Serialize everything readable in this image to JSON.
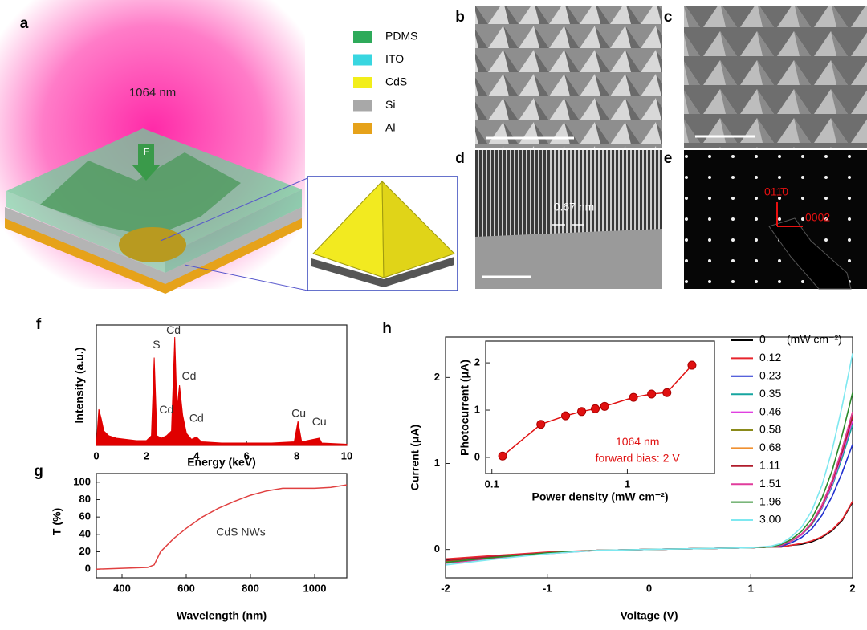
{
  "panel_labels": [
    "a",
    "b",
    "c",
    "d",
    "e",
    "f",
    "g",
    "h"
  ],
  "panel_a": {
    "legend": [
      {
        "name": "PDMS",
        "color": "#2eaa5a"
      },
      {
        "name": "ITO",
        "color": "#38d6e0"
      },
      {
        "name": "CdS",
        "color": "#f2ee1a"
      },
      {
        "name": "Si",
        "color": "#a8a8a8"
      },
      {
        "name": "Al",
        "color": "#e6a21a"
      }
    ],
    "wavelength": "1064 nm",
    "force": "F"
  },
  "panel_d": {
    "spacing": "0.67 nm"
  },
  "panel_e": {
    "directions": [
      "011̄0",
      "0002"
    ]
  },
  "chart_data": [
    {
      "type": "area",
      "color": "#e00000",
      "x": [
        0,
        0.1,
        0.2,
        0.3,
        0.5,
        0.8,
        1.2,
        1.6,
        2.0,
        2.2,
        2.31,
        2.42,
        2.6,
        2.8,
        3.0,
        3.13,
        3.22,
        3.32,
        3.45,
        3.6,
        3.8,
        4.0,
        4.2,
        5,
        6,
        7,
        7.9,
        8.05,
        8.2,
        8.9,
        9.0,
        10
      ],
      "values": [
        0,
        30,
        22,
        12,
        8,
        6,
        5,
        4,
        4,
        8,
        73,
        8,
        6,
        8,
        12,
        90,
        30,
        50,
        25,
        10,
        5,
        7,
        3,
        2,
        2,
        2,
        3,
        20,
        3,
        6,
        2,
        1
      ],
      "xlim": [
        0,
        10
      ],
      "xticks": [
        0,
        2,
        4,
        6,
        8,
        10
      ],
      "ylim": [
        0,
        100
      ],
      "xlabel": "Energy (keV)",
      "ylabel": "Intensity (a.u.)",
      "annotations": [
        {
          "text": "S",
          "x": 2.4,
          "y": 83
        },
        {
          "text": "Cd",
          "x": 3.08,
          "y": 95
        },
        {
          "text": "Cd",
          "x": 3.7,
          "y": 57
        },
        {
          "text": "Cd",
          "x": 2.8,
          "y": 29
        },
        {
          "text": "Cd",
          "x": 4.0,
          "y": 22
        },
        {
          "text": "Cu",
          "x": 8.08,
          "y": 26
        },
        {
          "text": "Cu",
          "x": 8.9,
          "y": 19
        }
      ]
    },
    {
      "type": "line",
      "color": "#e04040",
      "x": [
        320,
        480,
        500,
        520,
        560,
        600,
        650,
        700,
        750,
        800,
        850,
        900,
        950,
        1000,
        1050,
        1100
      ],
      "values": [
        0,
        2,
        5,
        20,
        35,
        47,
        60,
        70,
        78,
        85,
        90,
        93,
        93,
        93,
        94,
        97
      ],
      "xlim": [
        320,
        1100
      ],
      "xticks": [
        400,
        600,
        800,
        1000
      ],
      "ylim": [
        -10,
        110
      ],
      "yticks": [
        0,
        20,
        40,
        60,
        80,
        100
      ],
      "xlabel": "Wavelength (nm)",
      "ylabel": "T (%)",
      "annotations": [
        {
          "text": "CdS NWs",
          "x": 770,
          "y": 42
        }
      ]
    },
    {
      "type": "line",
      "x": [
        -2,
        -1.5,
        -1,
        -0.5,
        0,
        0.5,
        1,
        1.2,
        1.3,
        1.4,
        1.5,
        1.6,
        1.7,
        1.8,
        1.9,
        2
      ],
      "series": [
        {
          "name": "0",
          "color": "#000000",
          "values": [
            -0.12,
            -0.08,
            -0.04,
            -0.01,
            0,
            0.01,
            0.02,
            0.03,
            0.03,
            0.05,
            0.06,
            0.09,
            0.14,
            0.22,
            0.34,
            0.55
          ]
        },
        {
          "name": "0.12",
          "color": "#e8242c",
          "values": [
            -0.11,
            -0.07,
            -0.03,
            -0.01,
            0,
            0.01,
            0.02,
            0.03,
            0.03,
            0.05,
            0.07,
            0.1,
            0.15,
            0.23,
            0.35,
            0.56
          ]
        },
        {
          "name": "0.23",
          "color": "#1f2fd0",
          "values": [
            -0.14,
            -0.09,
            -0.04,
            -0.01,
            0,
            0.01,
            0.02,
            0.03,
            0.04,
            0.08,
            0.14,
            0.24,
            0.4,
            0.62,
            0.9,
            1.22
          ]
        },
        {
          "name": "0.35",
          "color": "#16a5a0",
          "values": [
            -0.15,
            -0.09,
            -0.04,
            -0.01,
            0,
            0.01,
            0.02,
            0.03,
            0.05,
            0.1,
            0.17,
            0.29,
            0.48,
            0.74,
            1.07,
            1.45
          ]
        },
        {
          "name": "0.46",
          "color": "#e040e0",
          "values": [
            -0.13,
            -0.08,
            -0.04,
            -0.01,
            0,
            0.01,
            0.02,
            0.03,
            0.05,
            0.1,
            0.17,
            0.3,
            0.49,
            0.76,
            1.11,
            1.5
          ]
        },
        {
          "name": "0.58",
          "color": "#8a8a1a",
          "values": [
            -0.14,
            -0.09,
            -0.04,
            -0.01,
            0,
            0.01,
            0.02,
            0.03,
            0.05,
            0.1,
            0.18,
            0.3,
            0.51,
            0.79,
            1.14,
            1.55
          ]
        },
        {
          "name": "0.68",
          "color": "#f09030",
          "values": [
            -0.15,
            -0.09,
            -0.04,
            -0.01,
            0,
            0.01,
            0.02,
            0.03,
            0.05,
            0.1,
            0.18,
            0.31,
            0.52,
            0.81,
            1.18,
            1.6
          ]
        },
        {
          "name": "1.11",
          "color": "#b01c2c",
          "values": [
            -0.13,
            -0.08,
            -0.04,
            -0.01,
            0,
            0.01,
            0.02,
            0.03,
            0.05,
            0.1,
            0.18,
            0.3,
            0.51,
            0.79,
            1.14,
            1.55
          ]
        },
        {
          "name": "1.51",
          "color": "#e03c9c",
          "values": [
            -0.16,
            -0.1,
            -0.05,
            -0.01,
            0,
            0.01,
            0.02,
            0.03,
            0.05,
            0.1,
            0.18,
            0.31,
            0.52,
            0.81,
            1.18,
            1.6
          ]
        },
        {
          "name": "1.96",
          "color": "#2a8a2a",
          "values": [
            -0.15,
            -0.09,
            -0.04,
            -0.01,
            0,
            0.01,
            0.02,
            0.03,
            0.06,
            0.12,
            0.21,
            0.36,
            0.6,
            0.92,
            1.34,
            1.82
          ]
        },
        {
          "name": "3.00",
          "color": "#7ee8f0",
          "values": [
            -0.18,
            -0.11,
            -0.05,
            -0.01,
            0,
            0.01,
            0.02,
            0.04,
            0.07,
            0.15,
            0.26,
            0.45,
            0.75,
            1.16,
            1.68,
            2.28
          ]
        }
      ],
      "legend_title": "(mW cm⁻²)",
      "xlim": [
        -2,
        2
      ],
      "xticks": [
        -2,
        -1,
        0,
        1,
        2
      ],
      "ylim": [
        -0.33,
        2.47
      ],
      "yticks": [
        0,
        1,
        2
      ],
      "xlabel": "Voltage (V)",
      "ylabel": "Current (μA)"
    },
    {
      "type": "line",
      "markers": true,
      "color": "#e01010",
      "xscale": "log",
      "x": [
        0.12,
        0.23,
        0.35,
        0.46,
        0.58,
        0.68,
        1.11,
        1.51,
        1.96,
        3.0
      ],
      "values": [
        0.03,
        0.7,
        0.88,
        0.97,
        1.03,
        1.08,
        1.27,
        1.34,
        1.37,
        1.95
      ],
      "xlim": [
        0.09,
        4.4
      ],
      "xticks": [
        0.1,
        1
      ],
      "ylim": [
        -0.34,
        2.46
      ],
      "yticks": [
        0,
        1,
        2
      ],
      "xlabel": "Power density (mW cm⁻²)",
      "ylabel": "Photocurrent (μA)",
      "annotations": [
        {
          "text": "1064 nm",
          "x": 1.19,
          "y": 0.32
        },
        {
          "text": "forward bias: 2 V",
          "x": 1.19,
          "y": -0.03
        }
      ]
    }
  ]
}
